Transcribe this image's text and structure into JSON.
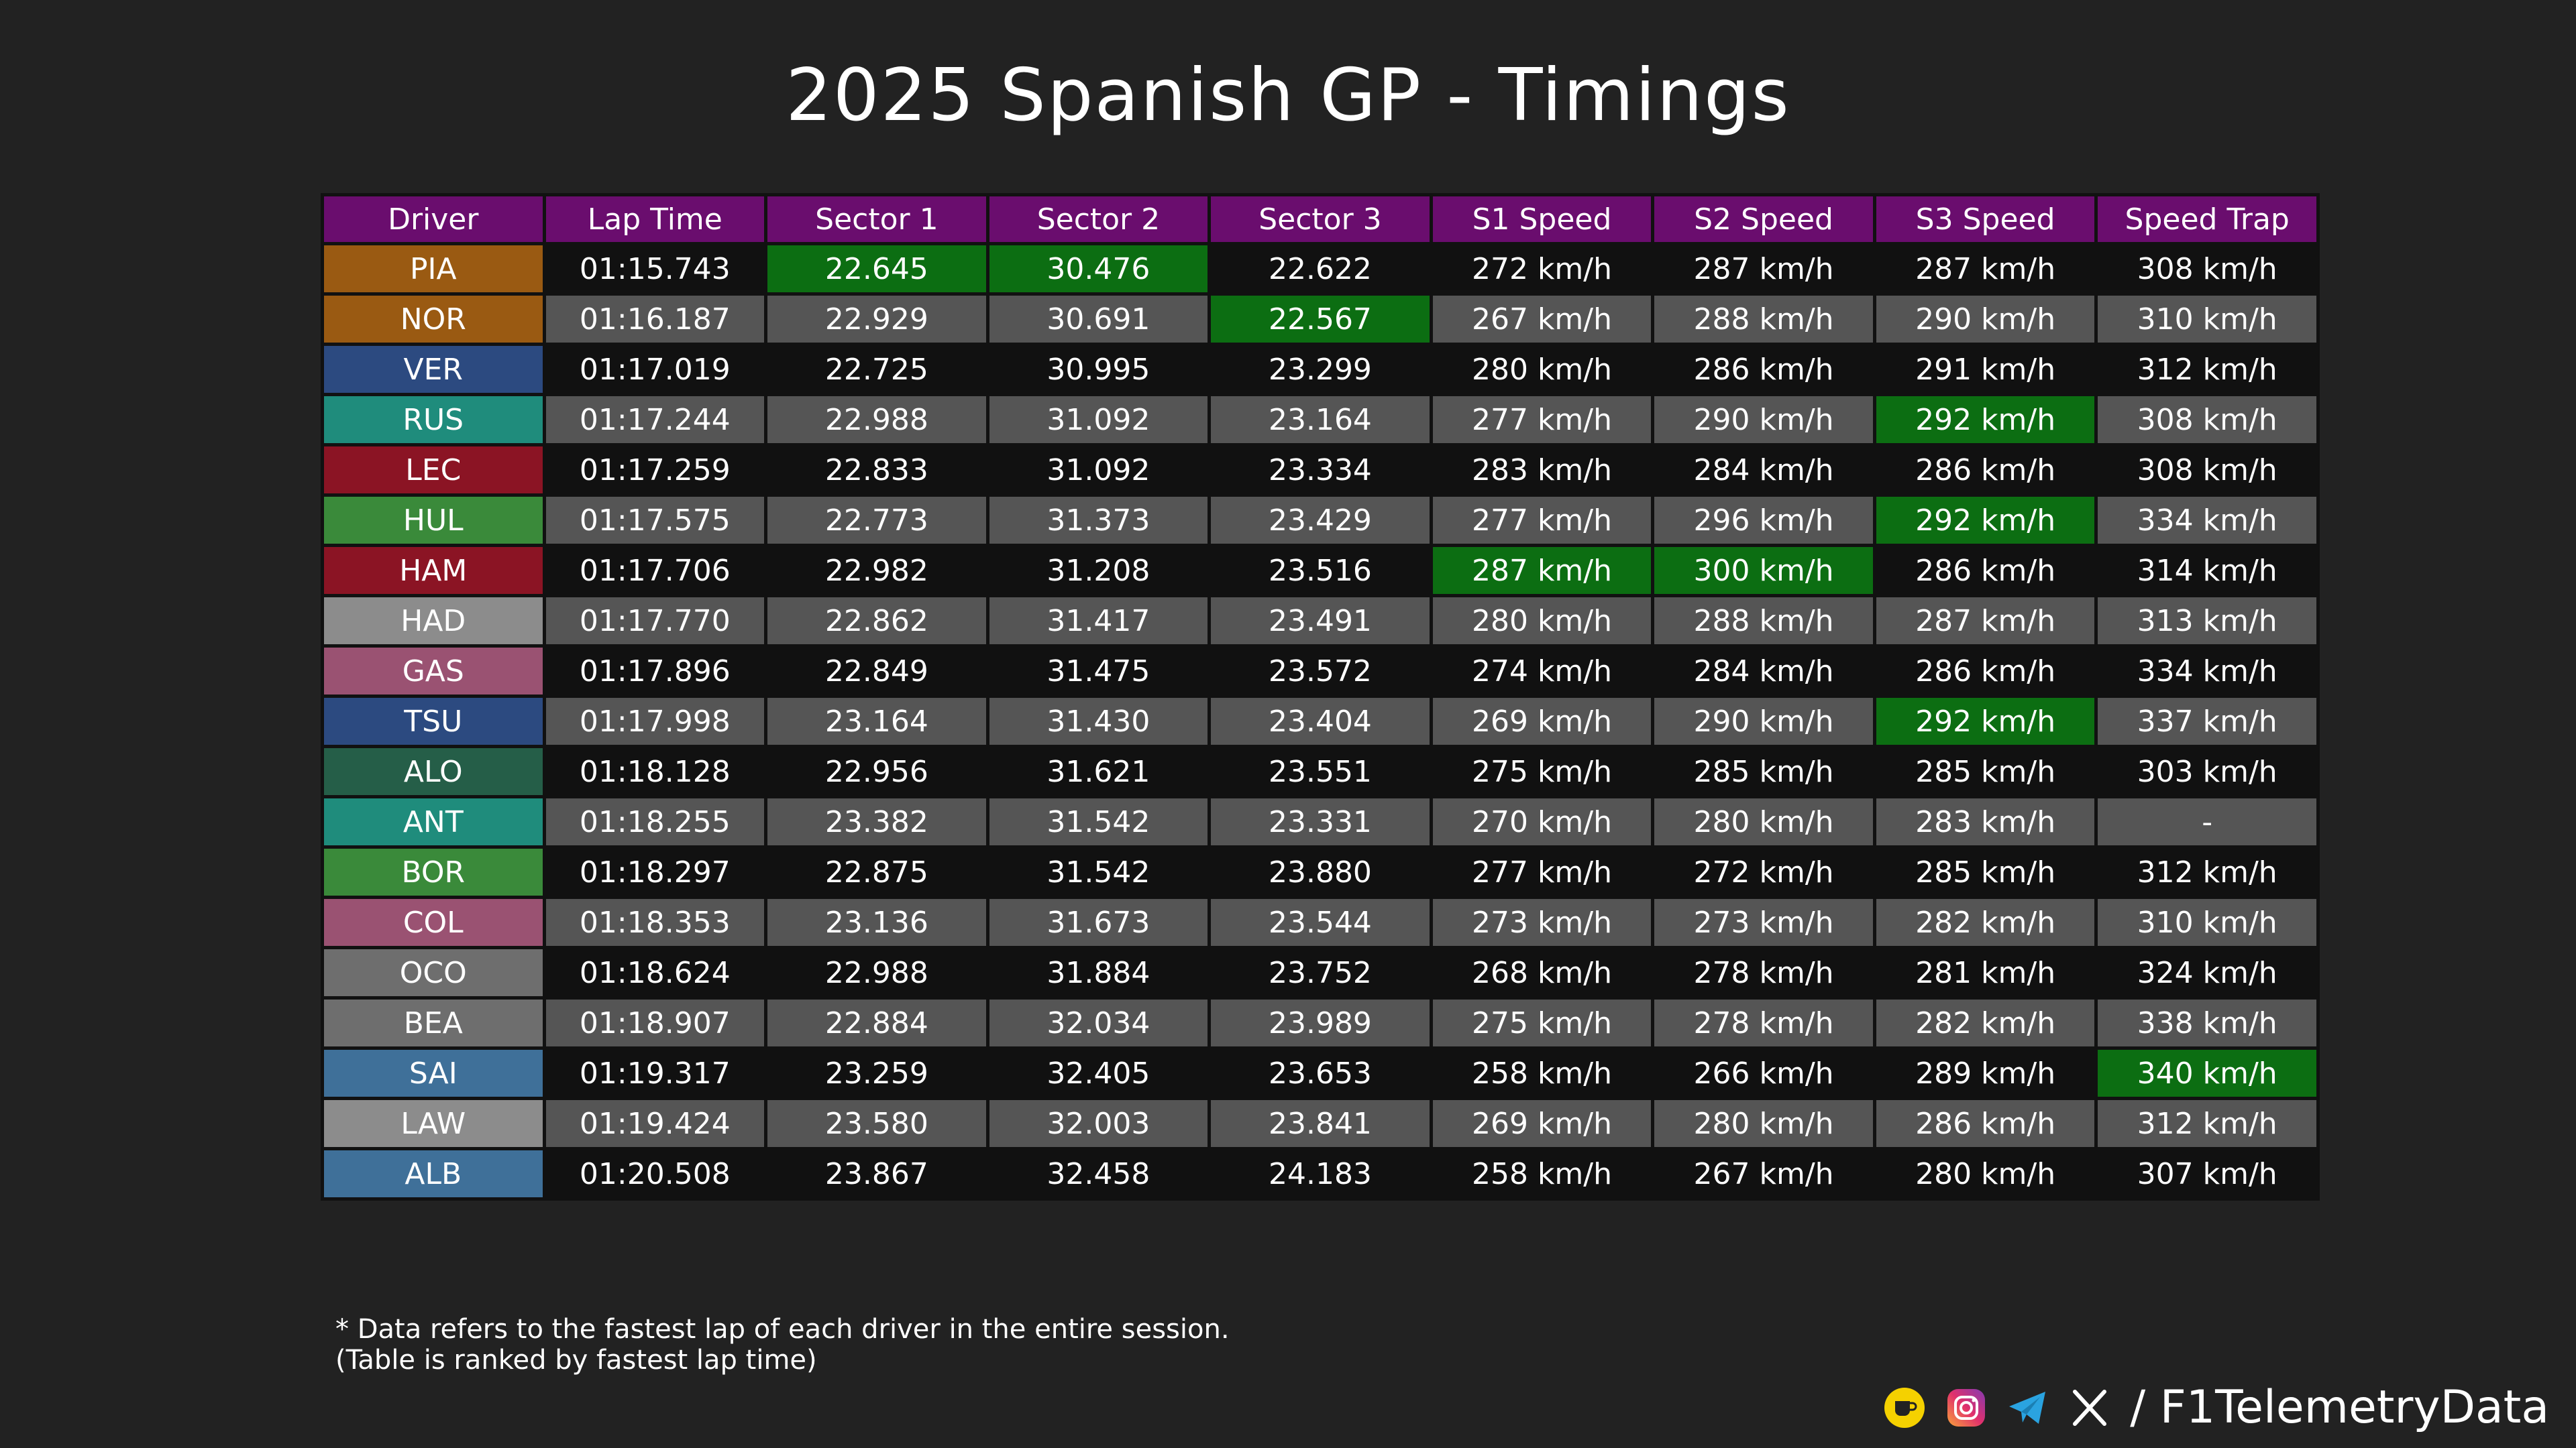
{
  "title": "2025 Spanish GP - Timings",
  "watermark": "@F1TelemetryData",
  "colors": {
    "header": "#6a0d6e",
    "best": "#0c6e12",
    "row_dark": "#111111",
    "row_light": "#555555"
  },
  "table": {
    "columns": [
      "Driver",
      "Lap Time",
      "Sector 1",
      "Sector 2",
      "Sector 3",
      "S1 Speed",
      "S2 Speed",
      "S3 Speed",
      "Speed Trap"
    ],
    "rows": [
      {
        "driver": "PIA",
        "color": "#9a5a12",
        "lap": "01:15.743",
        "s1": "22.645",
        "s2": "30.476",
        "s3": "22.622",
        "sp1": "272 km/h",
        "sp2": "287 km/h",
        "sp3": "287 km/h",
        "trap": "308 km/h",
        "best": [
          "s1",
          "s2"
        ]
      },
      {
        "driver": "NOR",
        "color": "#9a5a12",
        "lap": "01:16.187",
        "s1": "22.929",
        "s2": "30.691",
        "s3": "22.567",
        "sp1": "267 km/h",
        "sp2": "288 km/h",
        "sp3": "290 km/h",
        "trap": "310 km/h",
        "best": [
          "s3"
        ]
      },
      {
        "driver": "VER",
        "color": "#2c4a80",
        "lap": "01:17.019",
        "s1": "22.725",
        "s2": "30.995",
        "s3": "23.299",
        "sp1": "280 km/h",
        "sp2": "286 km/h",
        "sp3": "291 km/h",
        "trap": "312 km/h",
        "best": []
      },
      {
        "driver": "RUS",
        "color": "#1f8c7c",
        "lap": "01:17.244",
        "s1": "22.988",
        "s2": "31.092",
        "s3": "23.164",
        "sp1": "277 km/h",
        "sp2": "290 km/h",
        "sp3": "292 km/h",
        "trap": "308 km/h",
        "best": [
          "sp3"
        ]
      },
      {
        "driver": "LEC",
        "color": "#8b1424",
        "lap": "01:17.259",
        "s1": "22.833",
        "s2": "31.092",
        "s3": "23.334",
        "sp1": "283 km/h",
        "sp2": "284 km/h",
        "sp3": "286 km/h",
        "trap": "308 km/h",
        "best": []
      },
      {
        "driver": "HUL",
        "color": "#3a8a3a",
        "lap": "01:17.575",
        "s1": "22.773",
        "s2": "31.373",
        "s3": "23.429",
        "sp1": "277 km/h",
        "sp2": "296 km/h",
        "sp3": "292 km/h",
        "trap": "334 km/h",
        "best": [
          "sp3"
        ]
      },
      {
        "driver": "HAM",
        "color": "#8b1424",
        "lap": "01:17.706",
        "s1": "22.982",
        "s2": "31.208",
        "s3": "23.516",
        "sp1": "287 km/h",
        "sp2": "300 km/h",
        "sp3": "286 km/h",
        "trap": "314 km/h",
        "best": [
          "sp1",
          "sp2"
        ]
      },
      {
        "driver": "HAD",
        "color": "#8c8c8c",
        "lap": "01:17.770",
        "s1": "22.862",
        "s2": "31.417",
        "s3": "23.491",
        "sp1": "280 km/h",
        "sp2": "288 km/h",
        "sp3": "287 km/h",
        "trap": "313 km/h",
        "best": []
      },
      {
        "driver": "GAS",
        "color": "#9a5272",
        "lap": "01:17.896",
        "s1": "22.849",
        "s2": "31.475",
        "s3": "23.572",
        "sp1": "274 km/h",
        "sp2": "284 km/h",
        "sp3": "286 km/h",
        "trap": "334 km/h",
        "best": []
      },
      {
        "driver": "TSU",
        "color": "#2c4a80",
        "lap": "01:17.998",
        "s1": "23.164",
        "s2": "31.430",
        "s3": "23.404",
        "sp1": "269 km/h",
        "sp2": "290 km/h",
        "sp3": "292 km/h",
        "trap": "337 km/h",
        "best": [
          "sp3"
        ]
      },
      {
        "driver": "ALO",
        "color": "#255e48",
        "lap": "01:18.128",
        "s1": "22.956",
        "s2": "31.621",
        "s3": "23.551",
        "sp1": "275 km/h",
        "sp2": "285 km/h",
        "sp3": "285 km/h",
        "trap": "303 km/h",
        "best": []
      },
      {
        "driver": "ANT",
        "color": "#1f8c7c",
        "lap": "01:18.255",
        "s1": "23.382",
        "s2": "31.542",
        "s3": "23.331",
        "sp1": "270 km/h",
        "sp2": "280 km/h",
        "sp3": "283 km/h",
        "trap": "-",
        "best": []
      },
      {
        "driver": "BOR",
        "color": "#3a8a3a",
        "lap": "01:18.297",
        "s1": "22.875",
        "s2": "31.542",
        "s3": "23.880",
        "sp1": "277 km/h",
        "sp2": "272 km/h",
        "sp3": "285 km/h",
        "trap": "312 km/h",
        "best": []
      },
      {
        "driver": "COL",
        "color": "#9a5272",
        "lap": "01:18.353",
        "s1": "23.136",
        "s2": "31.673",
        "s3": "23.544",
        "sp1": "273 km/h",
        "sp2": "273 km/h",
        "sp3": "282 km/h",
        "trap": "310 km/h",
        "best": []
      },
      {
        "driver": "OCO",
        "color": "#6e6e6e",
        "lap": "01:18.624",
        "s1": "22.988",
        "s2": "31.884",
        "s3": "23.752",
        "sp1": "268 km/h",
        "sp2": "278 km/h",
        "sp3": "281 km/h",
        "trap": "324 km/h",
        "best": []
      },
      {
        "driver": "BEA",
        "color": "#6e6e6e",
        "lap": "01:18.907",
        "s1": "22.884",
        "s2": "32.034",
        "s3": "23.989",
        "sp1": "275 km/h",
        "sp2": "278 km/h",
        "sp3": "282 km/h",
        "trap": "338 km/h",
        "best": []
      },
      {
        "driver": "SAI",
        "color": "#3f7099",
        "lap": "01:19.317",
        "s1": "23.259",
        "s2": "32.405",
        "s3": "23.653",
        "sp1": "258 km/h",
        "sp2": "266 km/h",
        "sp3": "289 km/h",
        "trap": "340 km/h",
        "best": [
          "trap"
        ]
      },
      {
        "driver": "LAW",
        "color": "#8c8c8c",
        "lap": "01:19.424",
        "s1": "23.580",
        "s2": "32.003",
        "s3": "23.841",
        "sp1": "269 km/h",
        "sp2": "280 km/h",
        "sp3": "286 km/h",
        "trap": "312 km/h",
        "best": []
      },
      {
        "driver": "ALB",
        "color": "#3f7099",
        "lap": "01:20.508",
        "s1": "23.867",
        "s2": "32.458",
        "s3": "24.183",
        "sp1": "258 km/h",
        "sp2": "267 km/h",
        "sp3": "280 km/h",
        "trap": "307 km/h",
        "best": []
      }
    ]
  },
  "footnote": {
    "line1": "* Data refers to the fastest lap of each driver in the entire session.",
    "line2": "(Table is ranked by fastest lap time)"
  },
  "footer": {
    "icons": [
      "kofi-icon",
      "instagram-icon",
      "telegram-icon",
      "x-icon"
    ],
    "handle": "/ F1TelemetryData"
  }
}
